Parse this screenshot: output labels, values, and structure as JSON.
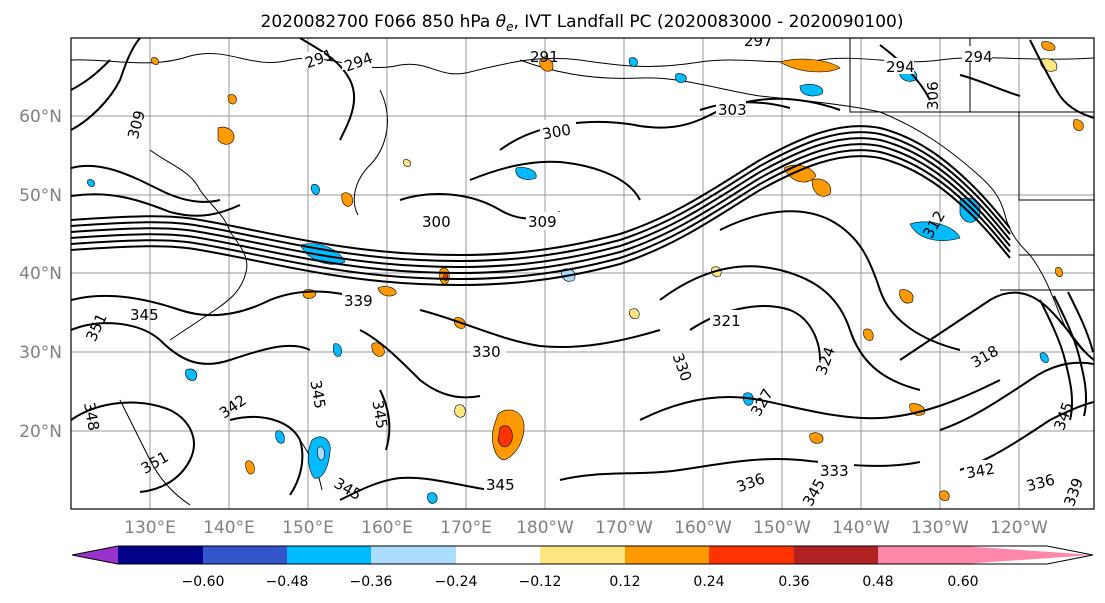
{
  "figure": {
    "title_prefix": "2020082700 F066 850 hPa ",
    "title_symbol": "θ",
    "title_subscript": "e",
    "title_suffix": ", IVT Landfall PC (2020083000 - 2020090100)"
  },
  "map": {
    "lat_labels": [
      "60°N",
      "50°N",
      "40°N",
      "30°N",
      "20°N"
    ],
    "lon_labels": [
      "130°E",
      "140°E",
      "150°E",
      "160°E",
      "170°E",
      "180°W",
      "170°W",
      "160°W",
      "150°W",
      "140°W",
      "130°W",
      "120°W"
    ],
    "contour_labels": [
      {
        "text": "291"
      },
      {
        "text": "294"
      },
      {
        "text": "291"
      },
      {
        "text": "297"
      },
      {
        "text": "294"
      },
      {
        "text": "294"
      },
      {
        "text": "309"
      },
      {
        "text": "303"
      },
      {
        "text": "300"
      },
      {
        "text": "300"
      },
      {
        "text": "309"
      },
      {
        "text": "339"
      },
      {
        "text": "351"
      },
      {
        "text": "345"
      },
      {
        "text": "330"
      },
      {
        "text": "321"
      },
      {
        "text": "330"
      },
      {
        "text": "324"
      },
      {
        "text": "318"
      },
      {
        "text": "342"
      },
      {
        "text": "345"
      },
      {
        "text": "345"
      },
      {
        "text": "348"
      },
      {
        "text": "351"
      },
      {
        "text": "345"
      },
      {
        "text": "327"
      },
      {
        "text": "336"
      },
      {
        "text": "345"
      },
      {
        "text": "333"
      },
      {
        "text": "342"
      },
      {
        "text": "345"
      },
      {
        "text": "339"
      },
      {
        "text": "345"
      },
      {
        "text": "336"
      },
      {
        "text": "312"
      },
      {
        "text": "306"
      }
    ]
  },
  "colorbar": {
    "colors": [
      "#9933cc",
      "#000088",
      "#3355cc",
      "#00bbff",
      "#aaddff",
      "#ffffff",
      "#ffe680",
      "#ff9900",
      "#ff3300",
      "#b22222",
      "#ff88aa"
    ],
    "tick_labels": [
      "−0.60",
      "−0.48",
      "−0.36",
      "−0.24",
      "−0.12",
      "0.12",
      "0.24",
      "0.36",
      "0.48",
      "0.60"
    ]
  }
}
